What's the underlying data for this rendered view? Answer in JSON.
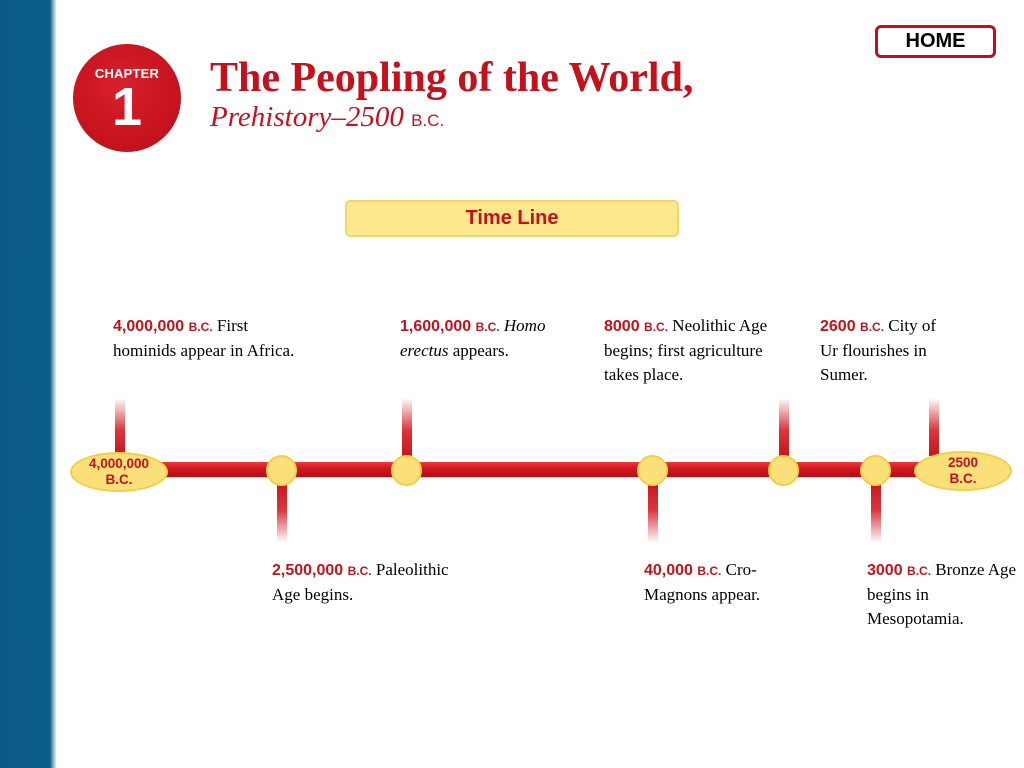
{
  "home_label": "HOME",
  "chapter": {
    "label": "CHAPTER",
    "number": "1"
  },
  "title": "The Peopling of the World,",
  "subtitle": {
    "main": "Prehistory–2500 ",
    "era": "B.C."
  },
  "timeline": {
    "header": "Time Line",
    "start": {
      "line1": "4,000,000",
      "line2": "B.C."
    },
    "end": {
      "line1": "2500",
      "line2": "B.C."
    },
    "events": [
      {
        "date": "4,000,000",
        "era": "B.C.",
        "text": "First hominids appear in Africa."
      },
      {
        "date": "2,500,000",
        "era": "B.C.",
        "text": "Paleolithic Age begins."
      },
      {
        "date": "1,600,000",
        "era": "B.C.",
        "text_italic": "Homo erectus",
        "text": "appears."
      },
      {
        "date": "40,000",
        "era": "B.C.",
        "text": "Cro-Magnons appear."
      },
      {
        "date": "8000",
        "era": "B.C.",
        "text": "Neolithic Age begins; first agriculture takes place."
      },
      {
        "date": "3000",
        "era": "B.C.",
        "text": "Bronze Age begins in Mesopotamia."
      },
      {
        "date": "2600",
        "era": "B.C.",
        "text": "City of Ur flourishes in Sumer."
      }
    ]
  },
  "colors": {
    "accent_red": "#c4121d",
    "sidebar_blue": "#0c5d8a",
    "highlight_yellow": "#fbe07a"
  }
}
